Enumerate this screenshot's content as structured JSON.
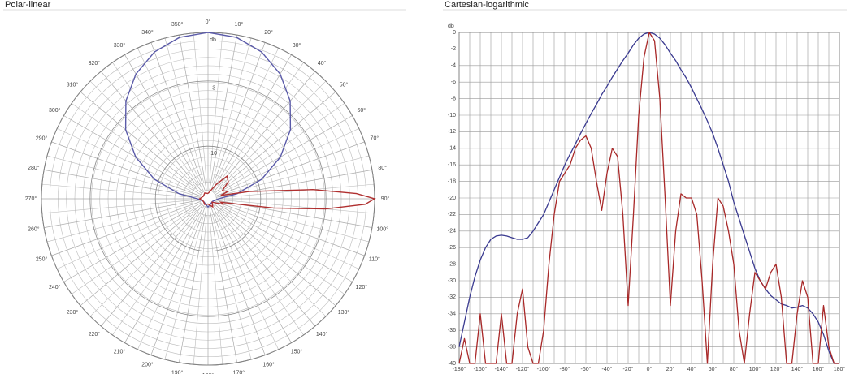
{
  "chart_data": [
    {
      "type": "polar",
      "title": "Polar-linear",
      "radial_scale": "linear",
      "rticks": [
        {
          "value": 0,
          "label": "db"
        },
        -3,
        -10
      ],
      "thetaticks": [
        {
          "value": 0,
          "label": "0°"
        },
        {
          "value": 10,
          "label": "10°"
        },
        {
          "value": 20,
          "label": "20°"
        },
        {
          "value": 30,
          "label": "30°"
        },
        {
          "value": 40,
          "label": "40°"
        },
        {
          "value": 50,
          "label": "50°"
        },
        {
          "value": 60,
          "label": "60°"
        },
        {
          "value": 70,
          "label": "70°"
        },
        {
          "value": 80,
          "label": "80°"
        },
        {
          "value": 90,
          "label": "90°"
        },
        {
          "value": 100,
          "label": "100°"
        },
        {
          "value": 110,
          "label": "110°"
        },
        {
          "value": 120,
          "label": "120°"
        },
        {
          "value": 130,
          "label": "130°"
        },
        {
          "value": 140,
          "label": "140°"
        },
        {
          "value": 150,
          "label": "150°"
        },
        {
          "value": 160,
          "label": "160°"
        },
        {
          "value": 170,
          "label": "170°"
        },
        {
          "value": 180,
          "label": "180°"
        },
        {
          "value": 190,
          "label": "190°"
        },
        {
          "value": 200,
          "label": "200°"
        },
        {
          "value": 210,
          "label": "210°"
        },
        {
          "value": 220,
          "label": "220°"
        },
        {
          "value": 230,
          "label": "230°"
        },
        {
          "value": 240,
          "label": "240°"
        },
        {
          "value": 250,
          "label": "250°"
        },
        {
          "value": 260,
          "label": "260°"
        },
        {
          "value": 270,
          "label": "270°"
        },
        {
          "value": 280,
          "label": "280°"
        },
        {
          "value": 290,
          "label": "290°"
        },
        {
          "value": 300,
          "label": "300°"
        },
        {
          "value": 310,
          "label": "310°"
        },
        {
          "value": 320,
          "label": "320°"
        },
        {
          "value": 330,
          "label": "330°"
        },
        {
          "value": 340,
          "label": "340°"
        },
        {
          "value": 350,
          "label": "350°"
        }
      ],
      "series": [
        {
          "color": "#5a5aa8",
          "theta": [
            280,
            290,
            300,
            310,
            320,
            330,
            340,
            350,
            0,
            10,
            20,
            30,
            40,
            50,
            60,
            70,
            80,
            90,
            120,
            180,
            240,
            270,
            280
          ],
          "values": [
            -15,
            -9.3,
            -6,
            -3.8,
            -2.3,
            -1.25,
            -0.54,
            -0.13,
            0,
            -0.13,
            -0.54,
            -1.25,
            -2.3,
            -3.8,
            -6,
            -9.3,
            -15,
            -24,
            -30,
            -26,
            -30,
            -24,
            -15
          ]
        },
        {
          "color": "#b03030",
          "theta": [
            0,
            30,
            40,
            50,
            60,
            70,
            75,
            80,
            85,
            88,
            90,
            92,
            95,
            98,
            100,
            105,
            110,
            130,
            150,
            180,
            210,
            240,
            270,
            300,
            330,
            360
          ],
          "values": [
            -30,
            -20,
            -15,
            -16,
            -20,
            -18,
            -22,
            -12,
            -4,
            -1,
            0,
            -0.5,
            -3,
            -8,
            -14,
            -22,
            -20,
            -30,
            -25,
            -30,
            -28,
            -30,
            -26,
            -30,
            -28,
            -30
          ]
        }
      ]
    },
    {
      "type": "line",
      "title": "Cartesian-logarithmic",
      "y_label": "db",
      "xlim": [
        -180,
        180
      ],
      "ylim": [
        -40,
        0
      ],
      "xticks": [
        {
          "value": -180,
          "label": "-180°"
        },
        {
          "value": -160,
          "label": "-160°"
        },
        {
          "value": -140,
          "label": "-140°"
        },
        {
          "value": -120,
          "label": "-120°"
        },
        {
          "value": -100,
          "label": "-100°"
        },
        {
          "value": -80,
          "label": "-80°"
        },
        {
          "value": -60,
          "label": "-60°"
        },
        {
          "value": -40,
          "label": "-40°"
        },
        {
          "value": -20,
          "label": "-20°"
        },
        {
          "value": 0,
          "label": "0°"
        },
        {
          "value": 20,
          "label": "20°"
        },
        {
          "value": 40,
          "label": "40°"
        },
        {
          "value": 60,
          "label": "60°"
        },
        {
          "value": 80,
          "label": "80°"
        },
        {
          "value": 100,
          "label": "100°"
        },
        {
          "value": 120,
          "label": "120°"
        },
        {
          "value": 140,
          "label": "140°"
        },
        {
          "value": 160,
          "label": "160°"
        },
        {
          "value": 180,
          "label": "180°"
        }
      ],
      "yticks": [
        0,
        -2,
        -4,
        -6,
        -8,
        -10,
        -12,
        -14,
        -16,
        -18,
        -20,
        -22,
        -24,
        -26,
        -28,
        -30,
        -32,
        -34,
        -36,
        -38,
        -40
      ],
      "x": [
        -180,
        -175,
        -170,
        -165,
        -160,
        -155,
        -150,
        -145,
        -140,
        -135,
        -130,
        -125,
        -120,
        -115,
        -110,
        -105,
        -100,
        -95,
        -90,
        -85,
        -80,
        -75,
        -70,
        -65,
        -60,
        -55,
        -50,
        -45,
        -40,
        -35,
        -30,
        -25,
        -20,
        -15,
        -10,
        -5,
        0,
        5,
        10,
        15,
        20,
        25,
        30,
        35,
        40,
        45,
        50,
        55,
        60,
        65,
        70,
        75,
        80,
        85,
        90,
        95,
        100,
        105,
        110,
        115,
        120,
        125,
        130,
        135,
        140,
        145,
        150,
        155,
        160,
        165,
        170,
        175,
        180
      ],
      "series": [
        {
          "color": "#3a3a90",
          "values": [
            -38,
            -35,
            -32,
            -29.5,
            -27.5,
            -26,
            -25,
            -24.6,
            -24.5,
            -24.6,
            -24.8,
            -25,
            -25,
            -24.8,
            -24,
            -23,
            -22,
            -20.5,
            -19,
            -17.5,
            -16,
            -14.7,
            -13.5,
            -12.2,
            -11,
            -9.8,
            -8.7,
            -7.5,
            -6.5,
            -5.4,
            -4.4,
            -3.4,
            -2.5,
            -1.5,
            -0.7,
            -0.2,
            0,
            -0.2,
            -0.7,
            -1.5,
            -2.5,
            -3.4,
            -4.5,
            -5.5,
            -6.7,
            -8,
            -9.3,
            -10.7,
            -12.2,
            -14,
            -16,
            -18,
            -20.5,
            -22.5,
            -24.5,
            -26.5,
            -28.5,
            -30,
            -31,
            -31.8,
            -32.3,
            -32.8,
            -33,
            -33.3,
            -33.2,
            -33,
            -33.3,
            -34,
            -35,
            -36.5,
            -38.5,
            -40,
            -40
          ]
        },
        {
          "color": "#a82828",
          "values": [
            -40,
            -37,
            -40,
            -40,
            -34,
            -40,
            -40,
            -40,
            -34,
            -40,
            -40,
            -34,
            -31,
            -38,
            -40,
            -40,
            -36,
            -28,
            -22,
            -18,
            -17,
            -16,
            -14,
            -13,
            -12.5,
            -14,
            -18,
            -21.5,
            -17,
            -14,
            -15,
            -22,
            -33,
            -22,
            -10,
            -3,
            0,
            -1,
            -8,
            -20,
            -33,
            -24,
            -19.5,
            -20,
            -20,
            -22,
            -30,
            -40,
            -28,
            -20,
            -21,
            -24,
            -28,
            -36,
            -40,
            -34,
            -29,
            -30,
            -31,
            -29,
            -28,
            -32,
            -40,
            -40,
            -34,
            -30,
            -32,
            -40,
            -40,
            -33,
            -38,
            -40,
            -40
          ]
        }
      ]
    }
  ]
}
